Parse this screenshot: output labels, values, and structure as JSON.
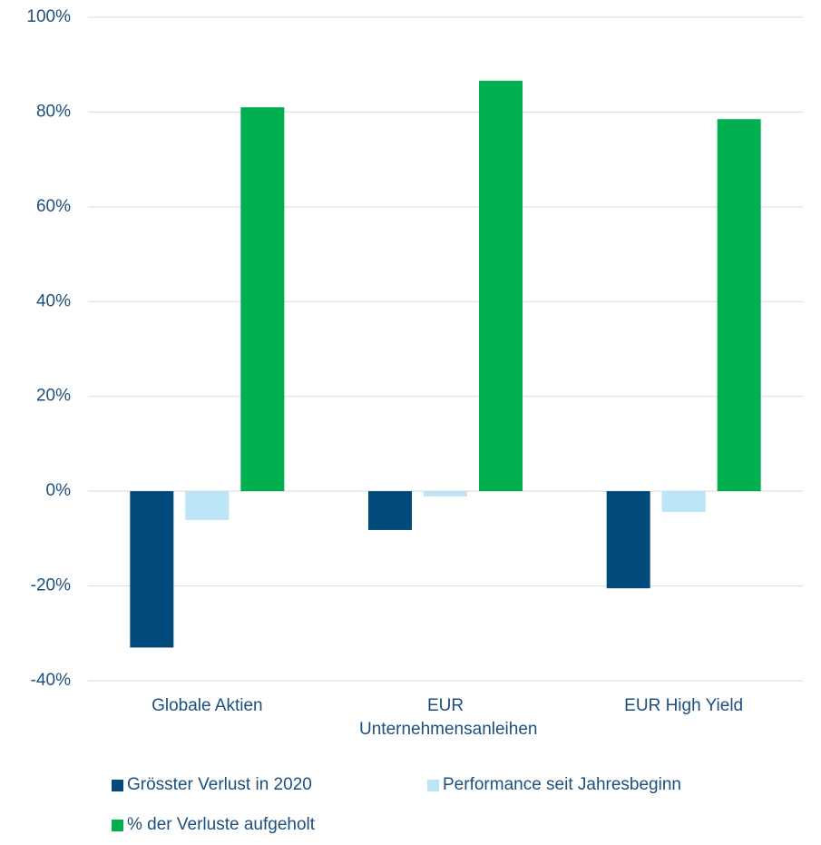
{
  "chart_data": {
    "type": "bar",
    "categories": [
      "Globale Aktien",
      "EUR Unternehmensanleihen",
      "EUR High Yield"
    ],
    "series": [
      {
        "name": "Grösster Verlust in 2020",
        "color": "#004a7c",
        "values": [
          -33,
          -8.2,
          -20.5
        ]
      },
      {
        "name": "Performance seit Jahresbeginn",
        "color": "#bde5f8",
        "values": [
          -6.1,
          -1.1,
          -4.4
        ]
      },
      {
        "name": "% der Verluste aufgeholt",
        "color": "#00b050",
        "values": [
          81,
          86.6,
          78.5
        ]
      }
    ],
    "ylim": [
      -40,
      100
    ],
    "yticks": [
      {
        "value": -40,
        "label": "-40%"
      },
      {
        "value": -20,
        "label": "-20%"
      },
      {
        "value": 0,
        "label": "0%"
      },
      {
        "value": 20,
        "label": "20%"
      },
      {
        "value": 40,
        "label": "40%"
      },
      {
        "value": 60,
        "label": "60%"
      },
      {
        "value": 80,
        "label": "80%"
      },
      {
        "value": 100,
        "label": "100%"
      }
    ],
    "grid": true,
    "legend": "bottom"
  }
}
